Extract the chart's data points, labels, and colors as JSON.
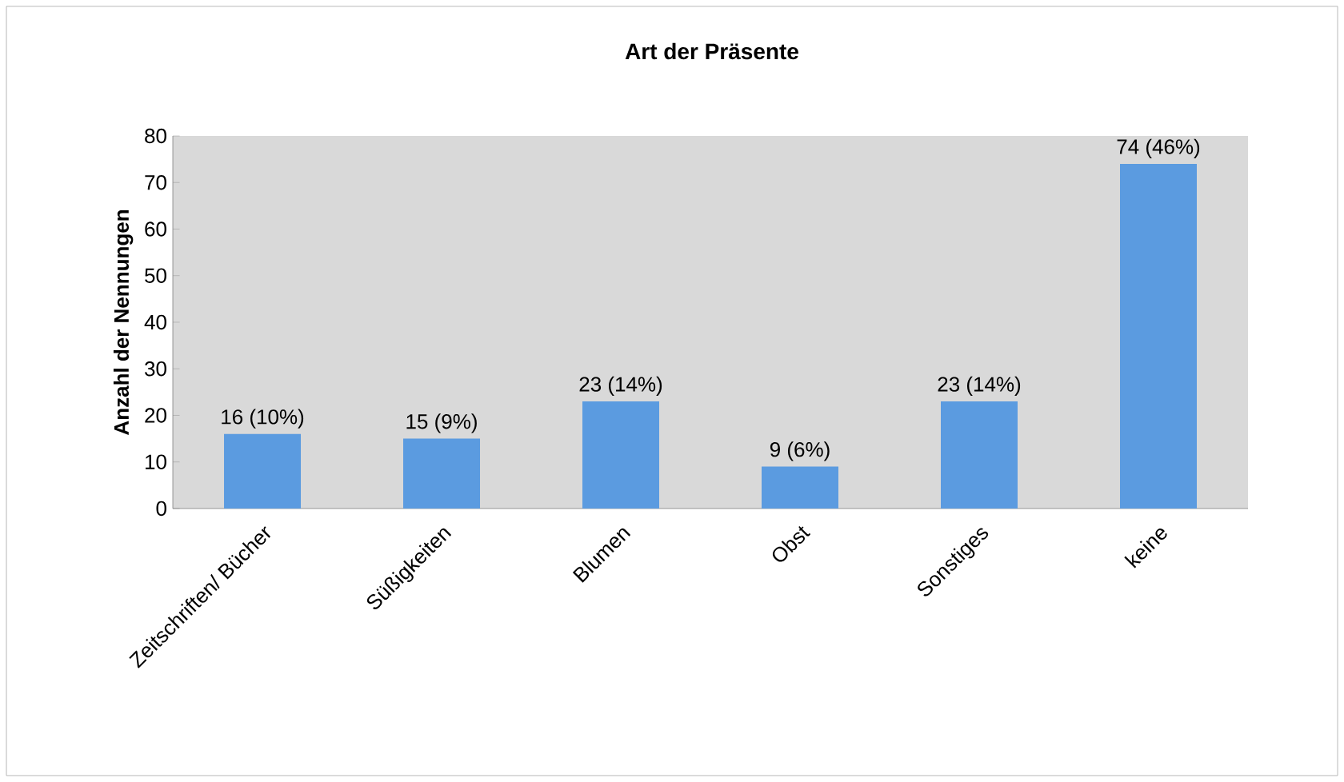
{
  "chart_data": {
    "type": "bar",
    "title": "Art der Präsente",
    "ylabel": "Anzahl der Nennungen",
    "categories": [
      "Zeitschriften/ Bücher",
      "Süßigkeiten",
      "Blumen",
      "Obst",
      "Sonstiges",
      "keine"
    ],
    "values": [
      16,
      15,
      23,
      9,
      23,
      74
    ],
    "value_labels": [
      "16 (10%)",
      "15 (9%)",
      "23 (14%)",
      "9 (6%)",
      "23 (14%)",
      "74 (46%)"
    ],
    "color": "#5b9be0",
    "ylim": [
      0,
      80
    ],
    "yticks": [
      0,
      10,
      20,
      30,
      40,
      50,
      60,
      70,
      80
    ],
    "grid": false
  }
}
